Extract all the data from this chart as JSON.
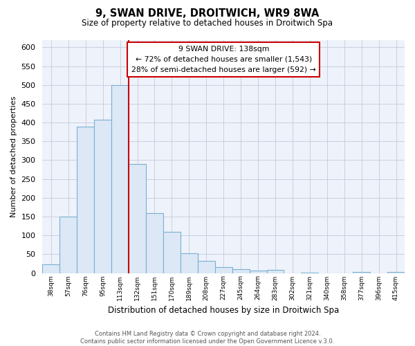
{
  "title": "9, SWAN DRIVE, DROITWICH, WR9 8WA",
  "subtitle": "Size of property relative to detached houses in Droitwich Spa",
  "xlabel": "Distribution of detached houses by size in Droitwich Spa",
  "ylabel": "Number of detached properties",
  "bin_labels": [
    "38sqm",
    "57sqm",
    "76sqm",
    "95sqm",
    "113sqm",
    "132sqm",
    "151sqm",
    "170sqm",
    "189sqm",
    "208sqm",
    "227sqm",
    "245sqm",
    "264sqm",
    "283sqm",
    "302sqm",
    "321sqm",
    "340sqm",
    "358sqm",
    "377sqm",
    "396sqm",
    "415sqm"
  ],
  "bar_heights": [
    23,
    150,
    390,
    408,
    500,
    290,
    160,
    110,
    53,
    33,
    15,
    10,
    6,
    8,
    0,
    1,
    0,
    0,
    3,
    0,
    2
  ],
  "bar_color": "#dce8f5",
  "bar_edge_color": "#7ab0d4",
  "property_line_x": 5,
  "property_line_color": "#cc0000",
  "annotation_line1": "9 SWAN DRIVE: 138sqm",
  "annotation_line2": "← 72% of detached houses are smaller (1,543)",
  "annotation_line3": "28% of semi-detached houses are larger (592) →",
  "annotation_box_color": "#ffffff",
  "annotation_box_edge": "#cc0000",
  "ylim": [
    0,
    620
  ],
  "yticks": [
    0,
    50,
    100,
    150,
    200,
    250,
    300,
    350,
    400,
    450,
    500,
    550,
    600
  ],
  "footer_text": "Contains HM Land Registry data © Crown copyright and database right 2024.\nContains public sector information licensed under the Open Government Licence v.3.0.",
  "background_color": "#ffffff",
  "plot_bg_color": "#eef2fa",
  "grid_color": "#c8cfe0"
}
